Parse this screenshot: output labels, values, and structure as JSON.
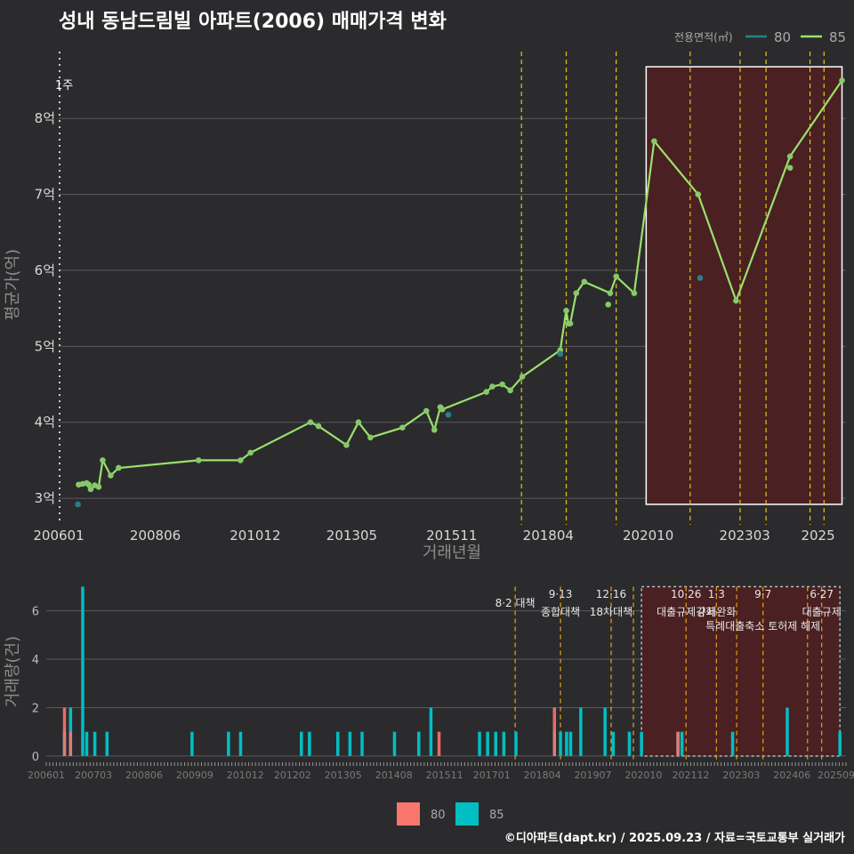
{
  "title": "성내 동남드림빌 아파트(2006) 매매가격 변화",
  "footer": "©디아파트(dapt.kr) / 2025.09.23 / 자료=국토교통부 실거래가",
  "legend_top": {
    "title": "전용면적(㎡)",
    "items": [
      {
        "label": "80",
        "color": "#2a7f8a"
      },
      {
        "label": "85",
        "color": "#9be06c"
      }
    ]
  },
  "legend_bottom": {
    "items": [
      {
        "label": "80",
        "color": "#f8766d"
      },
      {
        "label": "85",
        "color": "#00bfc4"
      }
    ]
  },
  "chart_data": [
    {
      "type": "line",
      "title": "성내 동남드림빌 아파트(2006) 매매가격 변화",
      "xlabel": "거래년월",
      "ylabel": "평균가(억)",
      "x_ticks": [
        "200601",
        "200806",
        "201012",
        "201305",
        "201511",
        "201804",
        "202010",
        "202303",
        "2025"
      ],
      "y_ticks": [
        "3억",
        "4억",
        "5억",
        "6억",
        "7억",
        "8억"
      ],
      "y_tick_values": [
        3,
        4,
        5,
        6,
        7,
        8
      ],
      "xlim": [
        2006.0,
        2025.7
      ],
      "ylim": [
        2.65,
        8.95
      ],
      "annotation": "1주",
      "highlight_region": {
        "x0": 2020.7,
        "x1": 2025.6,
        "y0": 2.92,
        "y1": 8.68
      },
      "event_lines": [
        2017.58,
        2018.7,
        2019.95,
        2021.8,
        2023.05,
        2023.7,
        2024.8,
        2025.15
      ],
      "series": [
        {
          "name": "85",
          "color": "#9be06c",
          "x": [
            2006.5,
            2006.6,
            2006.7,
            2006.75,
            2006.8,
            2006.9,
            2007.0,
            2007.1,
            2007.3,
            2007.5,
            2009.5,
            2010.55,
            2010.8,
            2012.3,
            2012.5,
            2013.2,
            2013.5,
            2013.8,
            2014.6,
            2015.2,
            2015.4,
            2015.55,
            2015.6,
            2016.7,
            2016.85,
            2017.1,
            2017.3,
            2017.6,
            2018.55,
            2018.7,
            2018.75,
            2018.8,
            2018.95,
            2019.15,
            2019.8,
            2019.95,
            2020.4,
            2020.9,
            2022.0,
            2022.95,
            2024.3,
            2025.6
          ],
          "y": [
            3.18,
            3.19,
            3.2,
            3.18,
            3.12,
            3.17,
            3.15,
            3.5,
            3.3,
            3.4,
            3.5,
            3.5,
            3.6,
            4.0,
            3.95,
            3.7,
            4.0,
            3.8,
            3.93,
            4.15,
            3.9,
            4.2,
            4.17,
            4.4,
            4.47,
            4.5,
            4.42,
            4.6,
            4.95,
            5.47,
            5.3,
            5.3,
            5.7,
            5.85,
            5.7,
            5.92,
            5.7,
            7.7,
            7.0,
            5.6,
            7.5,
            8.5
          ]
        },
        {
          "name": "80",
          "color": "#2a7f8a",
          "points_x": [
            2006.48,
            2015.75,
            2018.55,
            2022.05
          ],
          "points_y": [
            2.92,
            4.1,
            4.9,
            5.9
          ]
        },
        {
          "name": "85 (extra)",
          "color": "#9be06c",
          "points_x": [
            2019.75,
            2024.3
          ],
          "points_y": [
            5.55,
            7.35
          ]
        }
      ]
    },
    {
      "type": "bar",
      "ylabel": "거래량(건)",
      "x_ticks": [
        "200601",
        "200703",
        "200806",
        "200909",
        "201012",
        "201202",
        "201305",
        "201408",
        "201511",
        "201701",
        "201804",
        "201907",
        "202010",
        "202112",
        "202303",
        "202406",
        "202509"
      ],
      "y_ticks": [
        "0",
        "2",
        "4",
        "6"
      ],
      "y_tick_values": [
        0,
        2,
        4,
        6
      ],
      "xlim": [
        2006.0,
        2025.75
      ],
      "ylim": [
        -0.3,
        7.2
      ],
      "highlight_region": {
        "x0": 2020.7,
        "x1": 2025.6
      },
      "event_lines": [
        2017.58,
        2018.7,
        2019.95,
        2020.5,
        2021.8,
        2022.55,
        2023.05,
        2023.7,
        2024.8,
        2025.15
      ],
      "events": [
        {
          "date": "",
          "label": "8·2 대책",
          "x": 2017.58,
          "row": 2
        },
        {
          "date": "9·13",
          "label": "종합대책",
          "x": 2018.7,
          "row": 1
        },
        {
          "date": "12·16",
          "label": "18차대책",
          "x": 2019.95,
          "row": 1
        },
        {
          "date": "10·26",
          "label": "대출규제강화",
          "x": 2021.8,
          "row": 1
        },
        {
          "date": "1·3",
          "label": "규제완화",
          "x": 2022.55,
          "row": 1
        },
        {
          "date": "9·7",
          "label": "특례대출축소 토허제 해제",
          "x": 2023.7,
          "row": 2
        },
        {
          "date": "6·27",
          "label": "대출규제",
          "x": 2025.15,
          "row": 1
        }
      ],
      "series": [
        {
          "name": "80",
          "color": "#f8766d",
          "x": [
            2006.45,
            2006.6,
            2015.7,
            2018.55,
            2021.6
          ],
          "values": [
            2,
            1,
            1,
            2,
            1
          ]
        },
        {
          "name": "85",
          "color": "#00bfc4",
          "x": [
            2006.45,
            2006.6,
            2006.9,
            2007.0,
            2007.2,
            2007.5,
            2009.6,
            2010.5,
            2010.8,
            2012.3,
            2012.5,
            2013.2,
            2013.5,
            2013.8,
            2014.6,
            2015.2,
            2015.5,
            2016.7,
            2016.9,
            2017.1,
            2017.3,
            2017.6,
            2018.55,
            2018.7,
            2018.85,
            2018.95,
            2019.2,
            2019.8,
            2020.0,
            2020.4,
            2020.7,
            2021.6,
            2021.7,
            2022.95,
            2024.3,
            2025.6
          ],
          "values": [
            1,
            2,
            7,
            1,
            1,
            1,
            1,
            1,
            1,
            1,
            1,
            1,
            1,
            1,
            1,
            1,
            2,
            1,
            1,
            1,
            1,
            1,
            1,
            1,
            1,
            1,
            2,
            2,
            1,
            1,
            1,
            1,
            1,
            1,
            2,
            1
          ]
        }
      ]
    }
  ]
}
